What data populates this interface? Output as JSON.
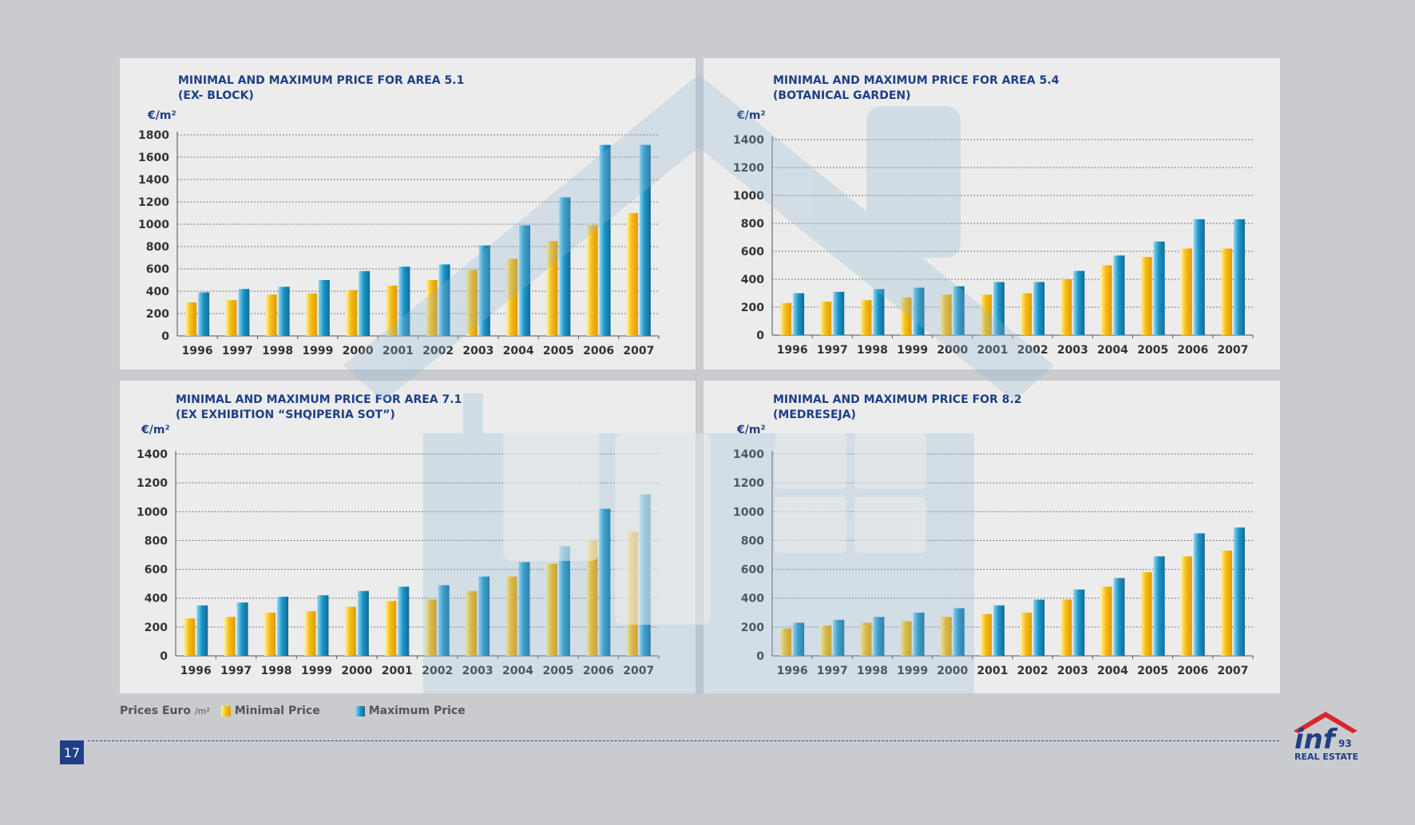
{
  "page_number": "17",
  "legend": {
    "prefix": "Prices Euro",
    "prefix_unit": "/m²",
    "minimal_label": "Minimal Price",
    "maximum_label": "Maximum Price"
  },
  "logo": {
    "mark": "inf",
    "number": "93",
    "subtitle": "REAL ESTATE"
  },
  "colors": {
    "minimal": "#f6bd16",
    "maximum": "#1e96c8",
    "title": "#1f3f86",
    "panel": "#ececec",
    "background": "#cacbcf"
  },
  "chart_data": [
    {
      "type": "bar",
      "title_line1": "MINIMAL AND MAXIMUM PRICE FOR AREA 5.1",
      "title_line2": "(EX- BLOCK)",
      "unit": "€/m²",
      "categories": [
        "1996",
        "1997",
        "1998",
        "1999",
        "2000",
        "2001",
        "2002",
        "2003",
        "2004",
        "2005",
        "2006",
        "2007"
      ],
      "ylim": [
        0,
        1800
      ],
      "yticks": [
        0,
        200,
        400,
        600,
        800,
        1000,
        1200,
        1400,
        1600,
        1800
      ],
      "series": [
        {
          "name": "Minimal Price",
          "values": [
            300,
            320,
            370,
            380,
            410,
            450,
            500,
            590,
            690,
            850,
            990,
            1100
          ]
        },
        {
          "name": "Maximum Price",
          "values": [
            390,
            420,
            440,
            500,
            580,
            620,
            640,
            810,
            990,
            1240,
            1710,
            1710
          ]
        }
      ]
    },
    {
      "type": "bar",
      "title_line1": "MINIMAL AND MAXIMUM PRICE FOR AREA 5.4",
      "title_line2": "(BOTANICAL GARDEN)",
      "unit": "€/m²",
      "categories": [
        "1996",
        "1997",
        "1998",
        "1999",
        "2000",
        "2001",
        "2002",
        "2003",
        "2004",
        "2005",
        "2006",
        "2007"
      ],
      "ylim": [
        0,
        1400
      ],
      "yticks": [
        0,
        200,
        400,
        600,
        800,
        1000,
        1200,
        1400
      ],
      "series": [
        {
          "name": "Minimal Price",
          "values": [
            230,
            240,
            250,
            270,
            290,
            290,
            300,
            400,
            500,
            560,
            620,
            620
          ]
        },
        {
          "name": "Maximum Price",
          "values": [
            300,
            310,
            330,
            340,
            350,
            380,
            380,
            460,
            570,
            670,
            830,
            830
          ]
        }
      ]
    },
    {
      "type": "bar",
      "title_line1": "MINIMAL AND MAXIMUM PRICE FOR AREA 7.1",
      "title_line2": "(EX EXHIBITION “SHQIPERIA SOT”)",
      "unit": "€/m²",
      "categories": [
        "1996",
        "1997",
        "1998",
        "1999",
        "2000",
        "2001",
        "2002",
        "2003",
        "2004",
        "2005",
        "2006",
        "2007"
      ],
      "ylim": [
        0,
        1400
      ],
      "yticks": [
        0,
        200,
        400,
        600,
        800,
        1000,
        1200,
        1400
      ],
      "series": [
        {
          "name": "Minimal Price",
          "values": [
            260,
            270,
            300,
            310,
            340,
            380,
            390,
            450,
            550,
            640,
            800,
            860
          ]
        },
        {
          "name": "Maximum Price",
          "values": [
            350,
            370,
            410,
            420,
            450,
            480,
            490,
            550,
            650,
            760,
            1020,
            1120
          ]
        }
      ]
    },
    {
      "type": "bar",
      "title_line1": "MINIMAL AND MAXIMUM PRICE FOR 8.2",
      "title_line2": "(MEDRESEJA)",
      "unit": "€/m²",
      "categories": [
        "1996",
        "1997",
        "1998",
        "1999",
        "2000",
        "2001",
        "2002",
        "2003",
        "2004",
        "2005",
        "2006",
        "2007"
      ],
      "ylim": [
        0,
        1400
      ],
      "yticks": [
        0,
        200,
        400,
        600,
        800,
        1000,
        1200,
        1400
      ],
      "series": [
        {
          "name": "Minimal Price",
          "values": [
            190,
            210,
            230,
            240,
            270,
            290,
            300,
            390,
            480,
            580,
            690,
            730
          ]
        },
        {
          "name": "Maximum Price",
          "values": [
            230,
            250,
            270,
            300,
            330,
            350,
            390,
            460,
            540,
            690,
            850,
            890
          ]
        }
      ]
    }
  ]
}
